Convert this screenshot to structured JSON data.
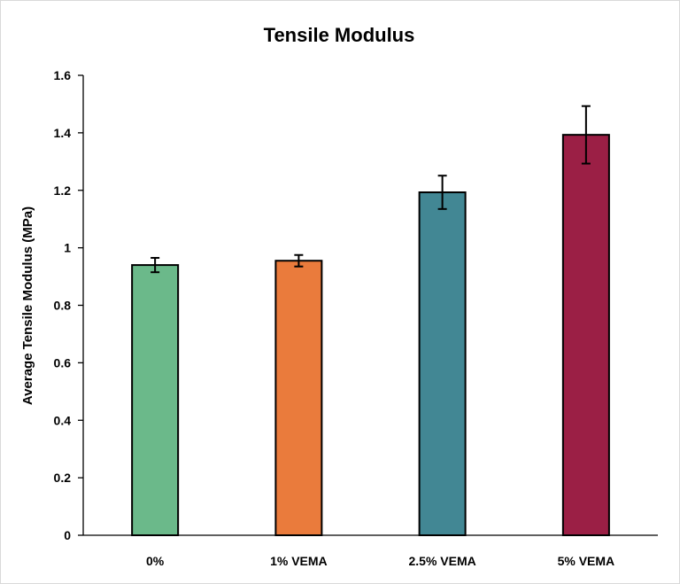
{
  "chart_data": {
    "type": "bar",
    "title": "Tensile Modulus",
    "xlabel": "",
    "ylabel": "Average Tensile Modulus (MPa)",
    "categories": [
      "0%",
      "1% VEMA",
      "2.5% VEMA",
      "5% VEMA"
    ],
    "values": [
      0.94,
      0.955,
      1.193,
      1.393
    ],
    "errors": [
      0.025,
      0.02,
      0.058,
      0.1
    ],
    "colors": [
      "#6bb98a",
      "#ea7b3c",
      "#428794",
      "#9b1f45"
    ],
    "ylim": [
      0,
      1.6
    ],
    "yticks": [
      0,
      0.2,
      0.4,
      0.6,
      0.8,
      1,
      1.2,
      1.4,
      1.6
    ],
    "ytick_labels": [
      "0",
      "0.2",
      "0.4",
      "0.6",
      "0.8",
      "1",
      "1.2",
      "1.4",
      "1.6"
    ],
    "grid": false,
    "legend": "none"
  }
}
